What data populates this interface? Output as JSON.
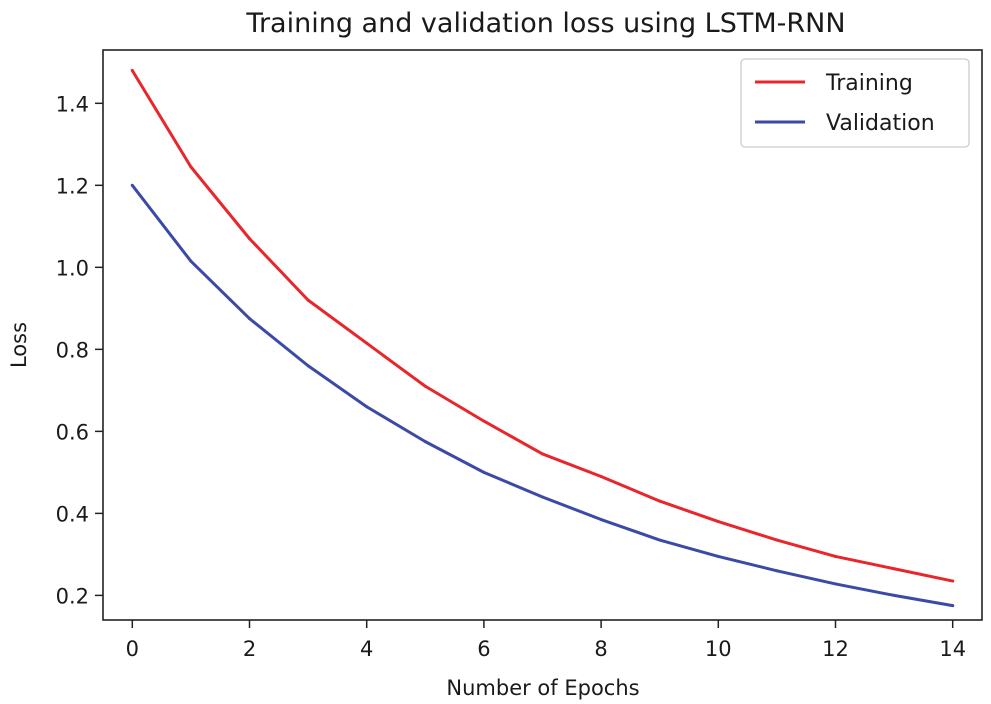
{
  "chart_data": {
    "type": "line",
    "title": "Training and validation loss using LSTM-RNN",
    "xlabel": "Number of Epochs",
    "ylabel": "Loss",
    "xlim": [
      -0.5,
      14.5
    ],
    "ylim": [
      0.14,
      1.53
    ],
    "xticks": [
      0,
      2,
      4,
      6,
      8,
      10,
      12,
      14
    ],
    "xtick_labels": [
      "0",
      "2",
      "4",
      "6",
      "8",
      "10",
      "12",
      "14"
    ],
    "yticks": [
      0.2,
      0.4,
      0.6,
      0.8,
      1.0,
      1.2,
      1.4
    ],
    "ytick_labels": [
      "0.2",
      "0.4",
      "0.6",
      "0.8",
      "1.0",
      "1.2",
      "1.4"
    ],
    "grid": false,
    "legend_position": "top-right",
    "x": [
      0,
      1,
      2,
      3,
      4,
      5,
      6,
      7,
      8,
      9,
      10,
      11,
      12,
      13,
      14
    ],
    "series": [
      {
        "name": "Training",
        "color": "#e8262b",
        "values": [
          1.48,
          1.245,
          1.07,
          0.92,
          0.815,
          0.71,
          0.625,
          0.545,
          0.49,
          0.43,
          0.38,
          0.335,
          0.295,
          0.265,
          0.235
        ]
      },
      {
        "name": "Validation",
        "color": "#3b4aa6",
        "values": [
          1.2,
          1.015,
          0.875,
          0.76,
          0.66,
          0.575,
          0.5,
          0.44,
          0.385,
          0.335,
          0.295,
          0.26,
          0.228,
          0.2,
          0.175
        ]
      }
    ]
  }
}
